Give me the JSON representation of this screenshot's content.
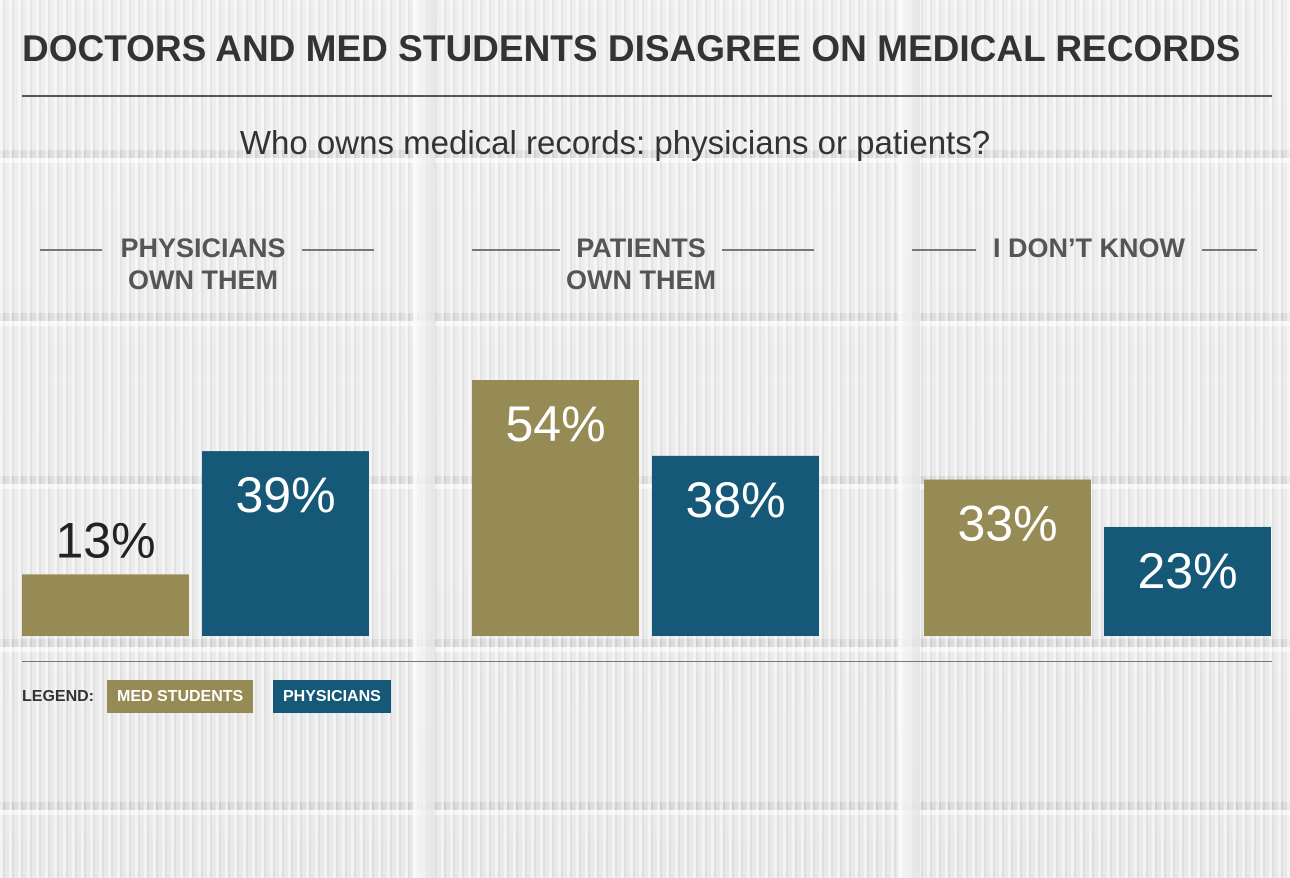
{
  "title": "DOCTORS AND MED STUDENTS DISAGREE ON MEDICAL RECORDS",
  "subtitle": "Who owns medical records: physicians or patients?",
  "legend": {
    "label": "LEGEND:",
    "items": [
      {
        "name": "MED STUDENTS",
        "color": "#968b55"
      },
      {
        "name": "PHYSICIANS",
        "color": "#155877"
      }
    ]
  },
  "chart_data": {
    "type": "bar",
    "title": "Who owns medical records: physicians or patients?",
    "categories": [
      {
        "line1": "PHYSICIANS",
        "line2": "OWN THEM"
      },
      {
        "line1": "PATIENTS",
        "line2": "OWN THEM"
      },
      {
        "line1": "I DON’T KNOW",
        "line2": ""
      }
    ],
    "series": [
      {
        "name": "MED STUDENTS",
        "color": "#968b55",
        "values": [
          13,
          54,
          33
        ],
        "labels": [
          "13%",
          "54%",
          "33%"
        ]
      },
      {
        "name": "PHYSICIANS",
        "color": "#155877",
        "values": [
          39,
          38,
          23
        ],
        "labels": [
          "39%",
          "38%",
          "23%"
        ]
      }
    ],
    "unit": "%",
    "ylim": [
      0,
      54
    ],
    "grid": false,
    "legend_position": "bottom-left"
  }
}
